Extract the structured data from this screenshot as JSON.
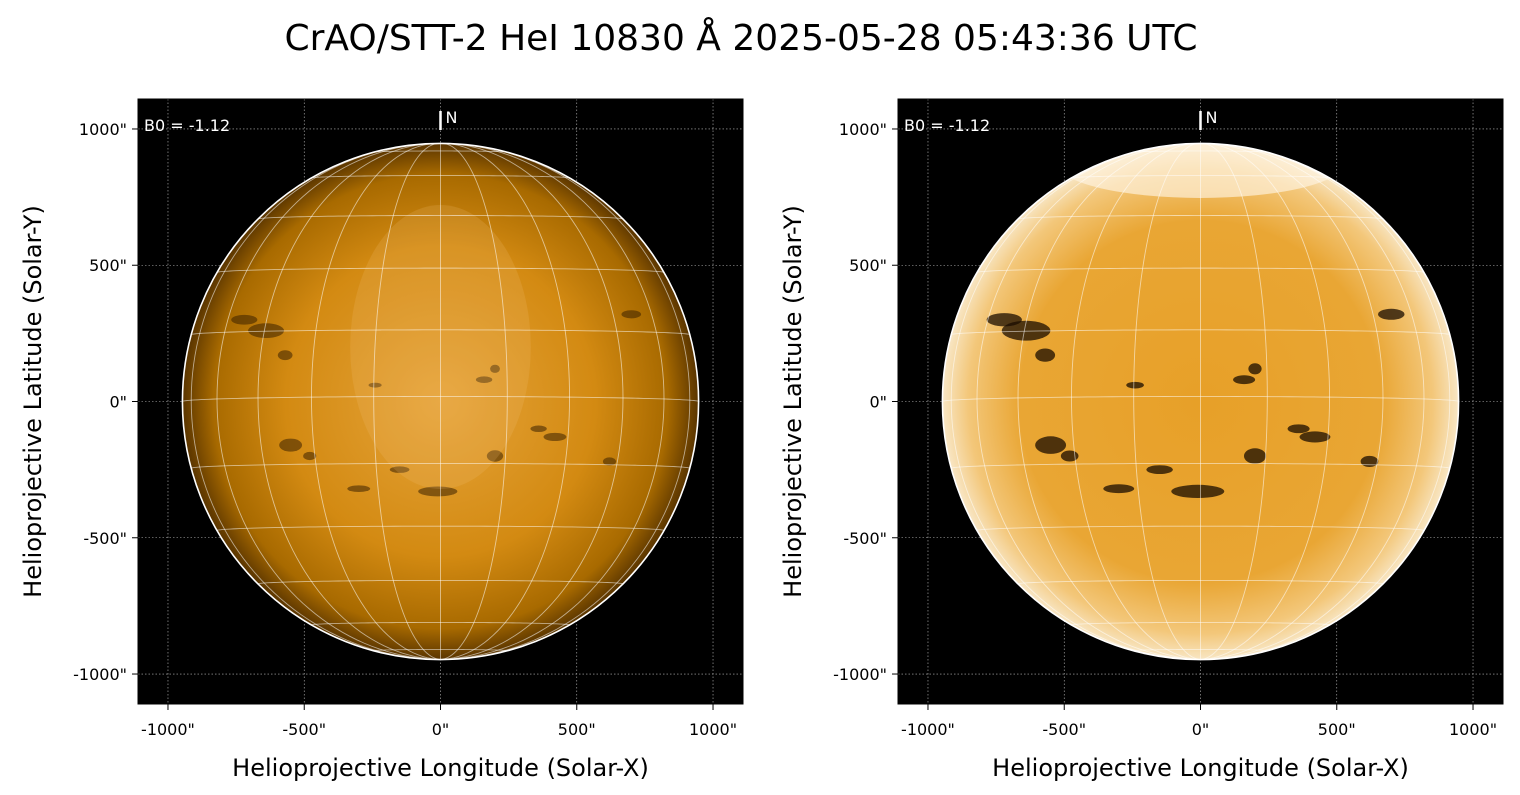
{
  "title": "CrAO/STT-2 HeI 10830 Å 2025-05-28 05:43:36 UTC",
  "colors": {
    "background": "#000000",
    "disk_center": "#e6a43a",
    "disk_mid": "#d38a12",
    "disk_limb": "#5a3500",
    "disk_center_enhanced": "#f2b34a",
    "disk_limb_enhanced": "#f8e6c4",
    "grid": "#ffffff",
    "text": "#ffffff"
  },
  "panels": [
    {
      "id": "left",
      "annotation": "B0 = -1.12",
      "north_label": "N",
      "xlabel": "Helioprojective Longitude (Solar-X)",
      "ylabel": "Helioprojective Latitude (Solar-Y)",
      "x_ticks": [
        "-1000\"",
        "-500\"",
        "0\"",
        "500\"",
        "1000\""
      ],
      "y_ticks": [
        "1000\"",
        "500\"",
        "0\"",
        "-500\"",
        "-1000\""
      ],
      "enhanced": false
    },
    {
      "id": "right",
      "annotation": "B0 = -1.12",
      "north_label": "N",
      "xlabel": "Helioprojective Longitude (Solar-X)",
      "ylabel": "Helioprojective Latitude (Solar-Y)",
      "x_ticks": [
        "-1000\"",
        "-500\"",
        "0\"",
        "500\"",
        "1000\""
      ],
      "y_ticks": [
        "1000\"",
        "500\"",
        "0\"",
        "-500\"",
        "-1000\""
      ],
      "enhanced": true
    }
  ],
  "axes": {
    "xlim": [
      -1110,
      1110
    ],
    "ylim": [
      -1110,
      1110
    ],
    "tick_values": [
      -1000,
      -500,
      0,
      500,
      1000
    ],
    "solar_radius_arcsec": 947,
    "b0_deg": -1.12,
    "grid_step_deg": 15
  }
}
